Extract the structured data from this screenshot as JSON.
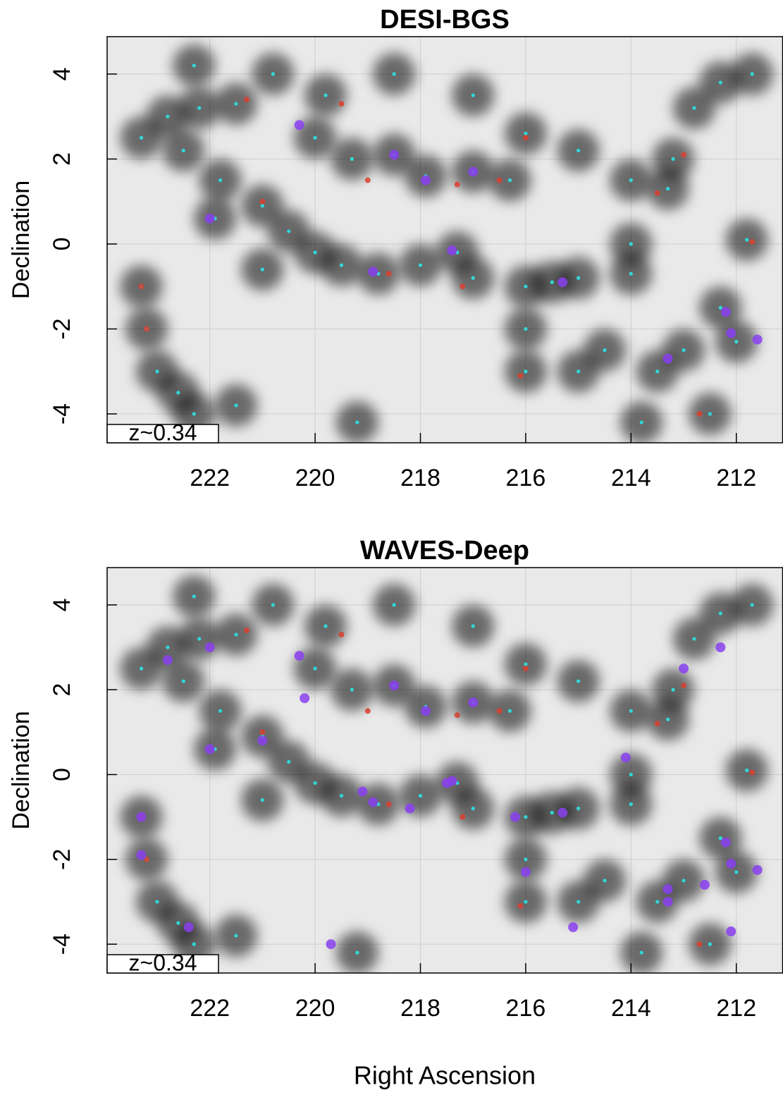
{
  "chart_data": [
    {
      "type": "scatter",
      "title": "DESI-BGS",
      "ylabel": "Declination",
      "annotation": "z~0.34",
      "xlim": [
        223.95,
        211.12
      ],
      "ylim": [
        -4.68,
        4.88
      ],
      "xticks": [
        222,
        220,
        218,
        216,
        214,
        212
      ],
      "yticks": [
        -4,
        -2,
        0,
        2,
        4
      ],
      "series": [
        {
          "color": "#000000",
          "x": [
            223.3,
            223.2,
            223,
            222.6,
            222.3,
            223.3,
            222.8,
            222.2,
            221.5,
            222.5,
            221.8,
            221.9,
            221,
            220.5,
            220,
            219.5,
            218.8,
            218,
            217.3,
            217,
            220,
            219.3,
            218.5,
            217.9,
            217,
            216.3,
            219.8,
            220.8,
            218.5,
            217,
            216,
            215,
            216,
            216,
            216,
            215.5,
            215,
            214.5,
            213.5,
            213,
            212.3,
            212,
            212.5,
            213.8,
            214,
            213.3,
            214,
            212.8,
            212.3,
            211.7,
            211.8,
            213.2,
            219.2,
            221.5,
            214,
            215,
            222.3,
            221
          ],
          "y": [
            -1,
            -2,
            -3,
            -3.5,
            -4,
            2.5,
            3,
            3.2,
            3.3,
            2.2,
            1.5,
            0.6,
            0.9,
            0.3,
            -0.2,
            -0.5,
            -0.7,
            -0.5,
            -0.2,
            -0.8,
            2.5,
            2,
            2.1,
            1.6,
            1.7,
            1.5,
            3.5,
            4,
            4,
            3.5,
            2.6,
            2.2,
            -1,
            -2,
            -3,
            -0.9,
            -3,
            -2.5,
            -3,
            -2.5,
            -1.5,
            -2.3,
            -4,
            -4.2,
            0,
            1.3,
            1.5,
            3.2,
            3.8,
            4,
            0.1,
            2,
            -4.2,
            -3.8,
            -0.7,
            -0.8,
            4.2,
            -0.6
          ]
        },
        {
          "color": "#2fd8d8",
          "x": [
            223.3,
            223.2,
            223,
            222.6,
            222.3,
            223.3,
            222.8,
            222.2,
            221.5,
            222.5,
            221.8,
            221.9,
            221,
            220.5,
            220,
            219.5,
            218.8,
            218,
            217.3,
            217,
            220,
            219.3,
            218.5,
            217.9,
            217,
            216.3,
            219.8,
            220.8,
            218.5,
            217,
            216,
            215,
            216,
            216,
            216,
            215.5,
            215,
            214.5,
            213.5,
            213,
            212.3,
            212,
            212.5,
            213.8,
            214,
            213.3,
            214,
            212.8,
            212.3,
            211.7,
            211.8,
            213.2,
            219.2,
            221.5,
            214,
            215,
            222.3,
            221
          ],
          "y": [
            -1,
            -2,
            -3,
            -3.5,
            -4,
            2.5,
            3,
            3.2,
            3.3,
            2.2,
            1.5,
            0.6,
            0.9,
            0.3,
            -0.2,
            -0.5,
            -0.7,
            -0.5,
            -0.2,
            -0.8,
            2.5,
            2,
            2.1,
            1.6,
            1.7,
            1.5,
            3.5,
            4,
            4,
            3.5,
            2.6,
            2.2,
            -1,
            -2,
            -3,
            -0.9,
            -3,
            -2.5,
            -3,
            -2.5,
            -1.5,
            -2.3,
            -4,
            -4.2,
            0,
            1.3,
            1.5,
            3.2,
            3.8,
            4,
            0.1,
            2,
            -4.2,
            -3.8,
            -0.7,
            -0.8,
            4.2,
            -0.6
          ]
        },
        {
          "color": "#d9402f",
          "x": [
            221.3,
            219.5,
            221,
            219,
            217.3,
            216.5,
            216,
            218.6,
            217.2,
            216.1,
            213,
            213.5,
            211.7,
            212.7,
            223.3,
            223.2
          ],
          "y": [
            3.4,
            3.3,
            1,
            1.5,
            1.4,
            1.5,
            2.5,
            -0.7,
            -1,
            -3.1,
            2.1,
            1.2,
            0.05,
            -4,
            -1,
            -2
          ]
        },
        {
          "color": "#8a3ff0",
          "x": [
            222,
            220.3,
            218.5,
            217.9,
            217,
            217.4,
            218.9,
            215.3,
            212.2,
            212.1,
            211.6,
            213.3
          ],
          "y": [
            0.6,
            2.8,
            2.1,
            1.5,
            1.7,
            -0.15,
            -0.65,
            -0.9,
            -1.6,
            -2.1,
            -2.25,
            -2.7
          ]
        }
      ]
    },
    {
      "type": "scatter",
      "title": "WAVES-Deep",
      "ylabel": "Declination",
      "xlabel": "Right Ascension",
      "annotation": "z~0.34",
      "xlim": [
        223.95,
        211.12
      ],
      "ylim": [
        -4.68,
        4.88
      ],
      "xticks": [
        222,
        220,
        218,
        216,
        214,
        212
      ],
      "yticks": [
        -4,
        -2,
        0,
        2,
        4
      ],
      "series": [
        {
          "color": "#000000",
          "x": [
            223.3,
            223.2,
            223,
            222.6,
            222.3,
            223.3,
            222.8,
            222.2,
            221.5,
            222.5,
            221.8,
            221.9,
            221,
            220.5,
            220,
            219.5,
            218.8,
            218,
            217.3,
            217,
            220,
            219.3,
            218.5,
            217.9,
            217,
            216.3,
            219.8,
            220.8,
            218.5,
            217,
            216,
            215,
            216,
            216,
            216,
            215.5,
            215,
            214.5,
            213.5,
            213,
            212.3,
            212,
            212.5,
            213.8,
            214,
            213.3,
            214,
            212.8,
            212.3,
            211.7,
            211.8,
            213.2,
            219.2,
            221.5,
            214,
            215,
            222.3,
            221
          ],
          "y": [
            -1,
            -2,
            -3,
            -3.5,
            -4,
            2.5,
            3,
            3.2,
            3.3,
            2.2,
            1.5,
            0.6,
            0.9,
            0.3,
            -0.2,
            -0.5,
            -0.7,
            -0.5,
            -0.2,
            -0.8,
            2.5,
            2,
            2.1,
            1.6,
            1.7,
            1.5,
            3.5,
            4,
            4,
            3.5,
            2.6,
            2.2,
            -1,
            -2,
            -3,
            -0.9,
            -3,
            -2.5,
            -3,
            -2.5,
            -1.5,
            -2.3,
            -4,
            -4.2,
            0,
            1.3,
            1.5,
            3.2,
            3.8,
            4,
            0.1,
            2,
            -4.2,
            -3.8,
            -0.7,
            -0.8,
            4.2,
            -0.6
          ]
        },
        {
          "color": "#2fd8d8",
          "x": [
            223.3,
            223.2,
            223,
            222.6,
            222.3,
            223.3,
            222.8,
            222.2,
            221.5,
            222.5,
            221.8,
            221.9,
            221,
            220.5,
            220,
            219.5,
            218.8,
            218,
            217.3,
            217,
            220,
            219.3,
            218.5,
            217.9,
            217,
            216.3,
            219.8,
            220.8,
            218.5,
            217,
            216,
            215,
            216,
            216,
            216,
            215.5,
            215,
            214.5,
            213.5,
            213,
            212.3,
            212,
            212.5,
            213.8,
            214,
            213.3,
            214,
            212.8,
            212.3,
            211.7,
            211.8,
            213.2,
            219.2,
            221.5,
            214,
            215,
            222.3,
            221
          ],
          "y": [
            -1,
            -2,
            -3,
            -3.5,
            -4,
            2.5,
            3,
            3.2,
            3.3,
            2.2,
            1.5,
            0.6,
            0.9,
            0.3,
            -0.2,
            -0.5,
            -0.7,
            -0.5,
            -0.2,
            -0.8,
            2.5,
            2,
            2.1,
            1.6,
            1.7,
            1.5,
            3.5,
            4,
            4,
            3.5,
            2.6,
            2.2,
            -1,
            -2,
            -3,
            -0.9,
            -3,
            -2.5,
            -3,
            -2.5,
            -1.5,
            -2.3,
            -4,
            -4.2,
            0,
            1.3,
            1.5,
            3.2,
            3.8,
            4,
            0.1,
            2,
            -4.2,
            -3.8,
            -0.7,
            -0.8,
            4.2,
            -0.6
          ]
        },
        {
          "color": "#d9402f",
          "x": [
            221.3,
            219.5,
            221,
            219,
            217.3,
            216.5,
            216,
            218.6,
            217.2,
            216.1,
            213,
            213.5,
            211.7,
            212.7,
            223.3,
            223.2
          ],
          "y": [
            3.4,
            3.3,
            1,
            1.5,
            1.4,
            1.5,
            2.5,
            -0.7,
            -1,
            -3.1,
            2.1,
            1.2,
            0.05,
            -4,
            -1,
            -2
          ]
        },
        {
          "color": "#8a3ff0",
          "x": [
            222,
            220.3,
            218.5,
            217.9,
            217,
            217.4,
            218.9,
            215.3,
            212.2,
            212.1,
            211.6,
            213.3,
            222,
            222.8,
            221,
            219.1,
            218.2,
            217.5,
            216,
            215.1,
            213.3,
            212.6,
            212.3,
            213,
            214.1,
            219.7,
            222.4,
            223.3,
            223.3,
            220.2,
            216.2,
            212.1
          ],
          "y": [
            0.6,
            2.8,
            2.1,
            1.5,
            1.7,
            -0.15,
            -0.65,
            -0.9,
            -1.6,
            -2.1,
            -2.25,
            -2.7,
            3,
            2.7,
            0.8,
            -0.4,
            -0.8,
            -0.2,
            -2.3,
            -3.6,
            -3,
            -2.6,
            3,
            2.5,
            0.4,
            -4,
            -3.6,
            -1,
            -1.9,
            1.8,
            -1,
            -3.7
          ]
        }
      ]
    }
  ]
}
